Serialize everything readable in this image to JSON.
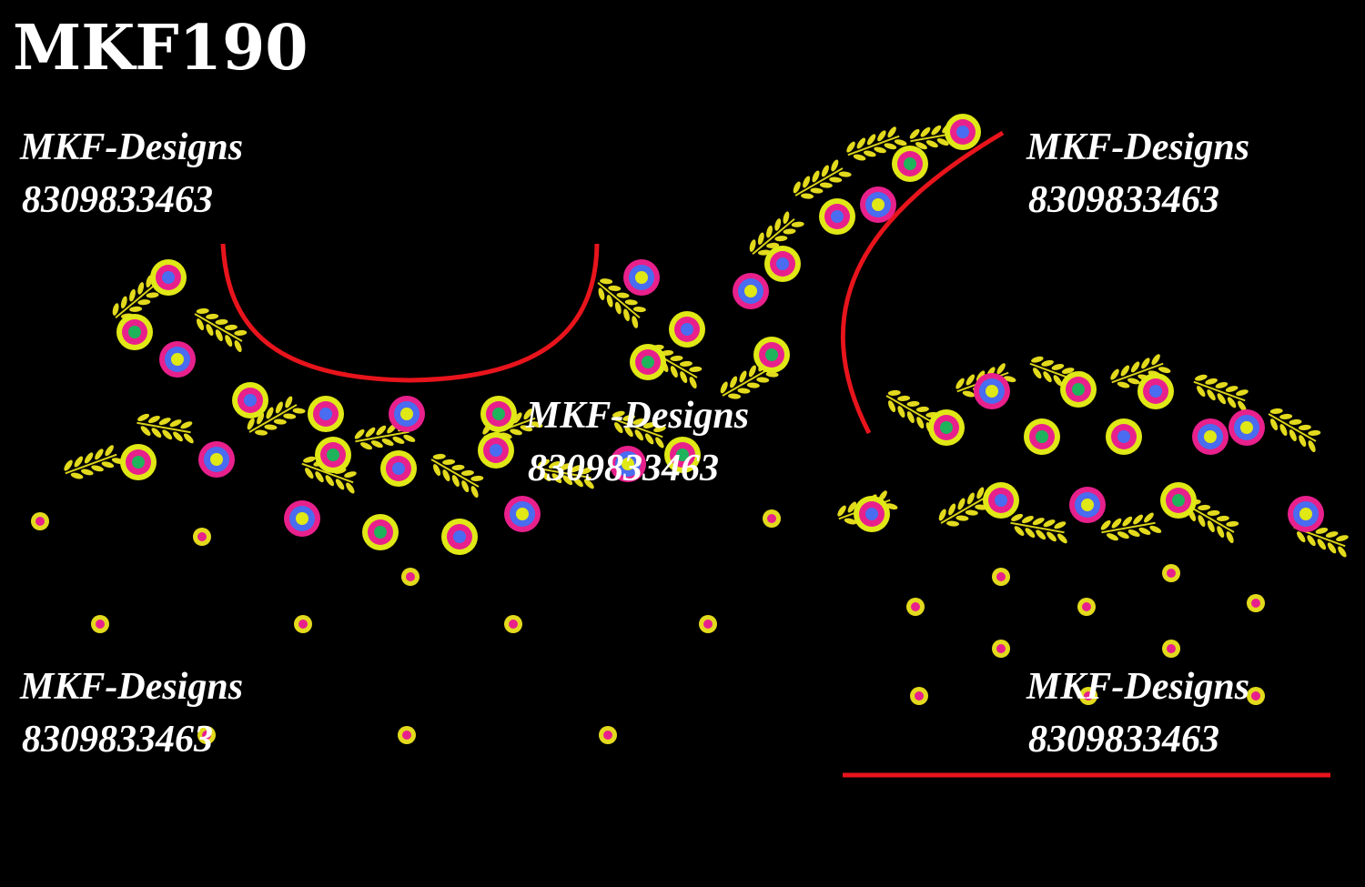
{
  "header": {
    "title": "MKF190"
  },
  "watermarks": [
    {
      "name": "MKF-Designs",
      "phone": "8309833463"
    },
    {
      "name": "MKF-Designs",
      "phone": "8309833463"
    },
    {
      "name": "MKF-Designs",
      "phone": "8309833463"
    },
    {
      "name": "MKF-Designs",
      "phone": "8309833463"
    },
    {
      "name": "MKF-Designs",
      "phone": "8309833463"
    }
  ]
}
